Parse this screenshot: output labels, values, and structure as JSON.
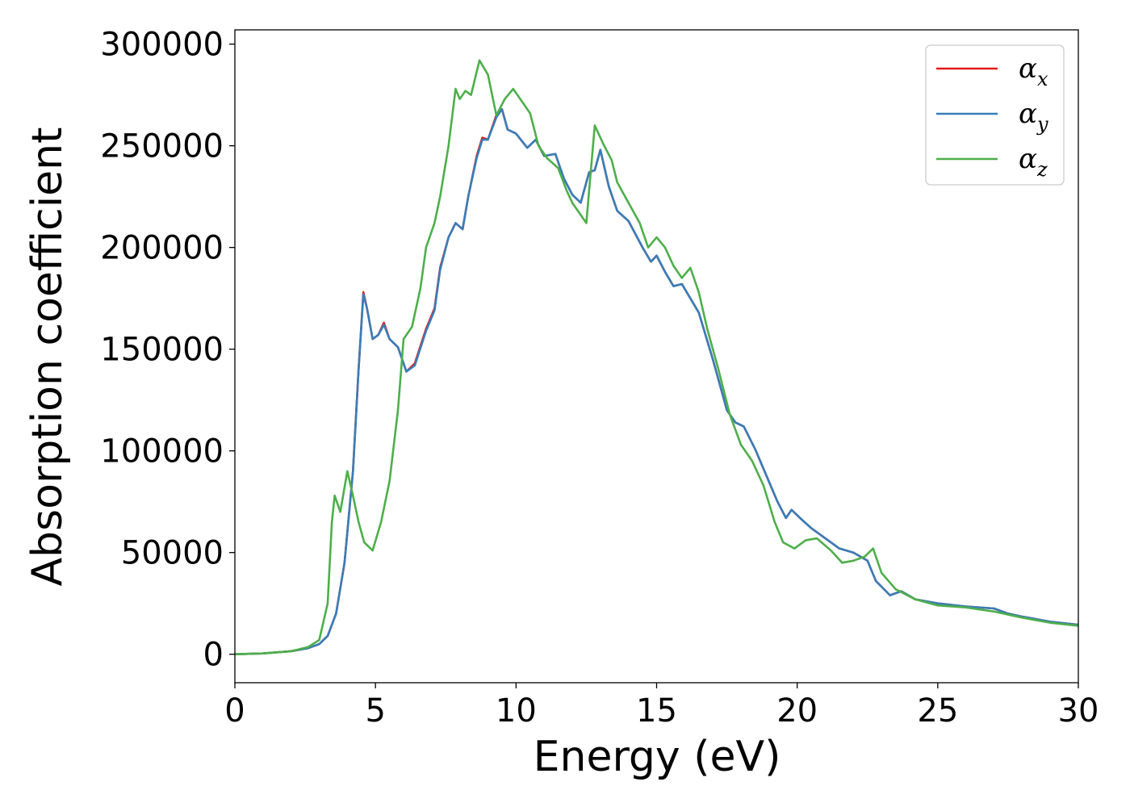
{
  "chart_data": {
    "type": "line",
    "title": "",
    "xlabel": "Energy (eV)",
    "ylabel": "Absorption coefficient",
    "xlim": [
      0,
      30
    ],
    "ylim": [
      -14000,
      307000
    ],
    "xticks": [
      0,
      5,
      10,
      15,
      20,
      25,
      30
    ],
    "xtick_labels": [
      "0",
      "5",
      "10",
      "15",
      "20",
      "25",
      "30"
    ],
    "yticks": [
      0,
      50000,
      100000,
      150000,
      200000,
      250000,
      300000
    ],
    "ytick_labels": [
      "0",
      "50000",
      "100000",
      "150000",
      "200000",
      "250000",
      "300000"
    ],
    "grid": false,
    "legend_position": "top-right",
    "series": [
      {
        "name": "α",
        "subscript": "x",
        "color": "#e41a1c",
        "points": [
          [
            0,
            0
          ],
          [
            1,
            400
          ],
          [
            2,
            1500
          ],
          [
            2.6,
            3000
          ],
          [
            3.0,
            5000
          ],
          [
            3.3,
            9000
          ],
          [
            3.6,
            20000
          ],
          [
            3.9,
            45000
          ],
          [
            4.2,
            90000
          ],
          [
            4.4,
            140000
          ],
          [
            4.57,
            178000
          ],
          [
            4.7,
            170000
          ],
          [
            4.9,
            155000
          ],
          [
            5.1,
            157000
          ],
          [
            5.3,
            163000
          ],
          [
            5.5,
            155000
          ],
          [
            5.8,
            151000
          ],
          [
            6.1,
            139000
          ],
          [
            6.4,
            143000
          ],
          [
            6.8,
            160000
          ],
          [
            7.1,
            170000
          ],
          [
            7.3,
            190000
          ],
          [
            7.6,
            205000
          ],
          [
            7.85,
            212000
          ],
          [
            8.1,
            209000
          ],
          [
            8.3,
            225000
          ],
          [
            8.6,
            245000
          ],
          [
            8.8,
            254000
          ],
          [
            9.0,
            253000
          ],
          [
            9.3,
            265000
          ],
          [
            9.5,
            268000
          ],
          [
            9.7,
            258000
          ],
          [
            10.0,
            256000
          ],
          [
            10.4,
            249000
          ],
          [
            10.7,
            253000
          ],
          [
            11.0,
            245000
          ],
          [
            11.4,
            246000
          ],
          [
            11.7,
            234000
          ],
          [
            12.0,
            226000
          ],
          [
            12.3,
            222000
          ],
          [
            12.6,
            237000
          ],
          [
            12.8,
            238000
          ],
          [
            13.0,
            248000
          ],
          [
            13.3,
            230000
          ],
          [
            13.6,
            218000
          ],
          [
            14.0,
            213000
          ],
          [
            14.5,
            200000
          ],
          [
            14.8,
            193000
          ],
          [
            15.0,
            196000
          ],
          [
            15.3,
            188000
          ],
          [
            15.6,
            181000
          ],
          [
            15.9,
            182000
          ],
          [
            16.2,
            175000
          ],
          [
            16.5,
            168000
          ],
          [
            17.0,
            145000
          ],
          [
            17.5,
            120000
          ],
          [
            17.8,
            114000
          ],
          [
            18.1,
            112000
          ],
          [
            18.5,
            101000
          ],
          [
            18.9,
            88000
          ],
          [
            19.3,
            75000
          ],
          [
            19.6,
            67000
          ],
          [
            19.8,
            71000
          ],
          [
            20.1,
            67000
          ],
          [
            20.5,
            62000
          ],
          [
            21.0,
            57000
          ],
          [
            21.5,
            52000
          ],
          [
            22.0,
            50000
          ],
          [
            22.5,
            46000
          ],
          [
            22.8,
            36000
          ],
          [
            23.3,
            29000
          ],
          [
            23.7,
            31000
          ],
          [
            24.2,
            27000
          ],
          [
            25.0,
            25000
          ],
          [
            26.0,
            23500
          ],
          [
            27.0,
            22500
          ],
          [
            27.5,
            20000
          ],
          [
            28.0,
            18500
          ],
          [
            29.0,
            16000
          ],
          [
            30.0,
            14500
          ]
        ]
      },
      {
        "name": "α",
        "subscript": "y",
        "color": "#377eb8",
        "points": [
          [
            0,
            0
          ],
          [
            1,
            400
          ],
          [
            2,
            1500
          ],
          [
            2.6,
            3000
          ],
          [
            3.0,
            5000
          ],
          [
            3.3,
            9000
          ],
          [
            3.6,
            20000
          ],
          [
            3.9,
            45000
          ],
          [
            4.2,
            90000
          ],
          [
            4.4,
            140000
          ],
          [
            4.57,
            177000
          ],
          [
            4.7,
            170000
          ],
          [
            4.9,
            155000
          ],
          [
            5.1,
            157000
          ],
          [
            5.3,
            162000
          ],
          [
            5.5,
            155000
          ],
          [
            5.8,
            151000
          ],
          [
            6.1,
            139000
          ],
          [
            6.4,
            142000
          ],
          [
            6.8,
            159000
          ],
          [
            7.1,
            169000
          ],
          [
            7.3,
            189000
          ],
          [
            7.6,
            205000
          ],
          [
            7.85,
            212000
          ],
          [
            8.1,
            209000
          ],
          [
            8.3,
            225000
          ],
          [
            8.6,
            244000
          ],
          [
            8.8,
            253000
          ],
          [
            9.0,
            253000
          ],
          [
            9.3,
            264000
          ],
          [
            9.5,
            268000
          ],
          [
            9.7,
            258000
          ],
          [
            10.0,
            256000
          ],
          [
            10.4,
            249000
          ],
          [
            10.7,
            253000
          ],
          [
            11.0,
            245000
          ],
          [
            11.4,
            246000
          ],
          [
            11.7,
            234000
          ],
          [
            12.0,
            226000
          ],
          [
            12.3,
            222000
          ],
          [
            12.6,
            237000
          ],
          [
            12.8,
            238000
          ],
          [
            13.0,
            248000
          ],
          [
            13.3,
            230000
          ],
          [
            13.6,
            218000
          ],
          [
            14.0,
            213000
          ],
          [
            14.5,
            200000
          ],
          [
            14.8,
            193000
          ],
          [
            15.0,
            196000
          ],
          [
            15.3,
            188000
          ],
          [
            15.6,
            181000
          ],
          [
            15.9,
            182000
          ],
          [
            16.2,
            175000
          ],
          [
            16.5,
            168000
          ],
          [
            17.0,
            145000
          ],
          [
            17.5,
            120000
          ],
          [
            17.8,
            114000
          ],
          [
            18.1,
            112000
          ],
          [
            18.5,
            101000
          ],
          [
            18.9,
            88000
          ],
          [
            19.3,
            75000
          ],
          [
            19.6,
            67000
          ],
          [
            19.8,
            71000
          ],
          [
            20.1,
            67000
          ],
          [
            20.5,
            62000
          ],
          [
            21.0,
            57000
          ],
          [
            21.5,
            52000
          ],
          [
            22.0,
            50000
          ],
          [
            22.5,
            46000
          ],
          [
            22.8,
            36000
          ],
          [
            23.3,
            29000
          ],
          [
            23.7,
            31000
          ],
          [
            24.2,
            27000
          ],
          [
            25.0,
            25000
          ],
          [
            26.0,
            23500
          ],
          [
            27.0,
            22500
          ],
          [
            27.5,
            20000
          ],
          [
            28.0,
            18500
          ],
          [
            29.0,
            16000
          ],
          [
            30.0,
            14500
          ]
        ]
      },
      {
        "name": "α",
        "subscript": "z",
        "color": "#4daf4a",
        "points": [
          [
            0,
            0
          ],
          [
            1,
            400
          ],
          [
            2,
            1500
          ],
          [
            2.6,
            3500
          ],
          [
            3.0,
            7000
          ],
          [
            3.3,
            25000
          ],
          [
            3.45,
            65000
          ],
          [
            3.55,
            78000
          ],
          [
            3.75,
            70000
          ],
          [
            4.0,
            90000
          ],
          [
            4.2,
            78000
          ],
          [
            4.4,
            65000
          ],
          [
            4.6,
            55000
          ],
          [
            4.9,
            51000
          ],
          [
            5.2,
            65000
          ],
          [
            5.5,
            85000
          ],
          [
            5.8,
            120000
          ],
          [
            6.0,
            155000
          ],
          [
            6.3,
            161000
          ],
          [
            6.6,
            180000
          ],
          [
            6.8,
            200000
          ],
          [
            7.1,
            212000
          ],
          [
            7.3,
            225000
          ],
          [
            7.6,
            250000
          ],
          [
            7.85,
            278000
          ],
          [
            8.0,
            273000
          ],
          [
            8.2,
            277000
          ],
          [
            8.4,
            275000
          ],
          [
            8.7,
            292000
          ],
          [
            9.0,
            285000
          ],
          [
            9.3,
            265000
          ],
          [
            9.6,
            273000
          ],
          [
            9.9,
            278000
          ],
          [
            10.2,
            272000
          ],
          [
            10.5,
            266000
          ],
          [
            10.8,
            250000
          ],
          [
            11.1,
            244000
          ],
          [
            11.5,
            239000
          ],
          [
            11.8,
            228000
          ],
          [
            12.0,
            222000
          ],
          [
            12.2,
            218000
          ],
          [
            12.5,
            212000
          ],
          [
            12.8,
            260000
          ],
          [
            13.1,
            251000
          ],
          [
            13.4,
            243000
          ],
          [
            13.6,
            232000
          ],
          [
            14.0,
            222000
          ],
          [
            14.4,
            212000
          ],
          [
            14.7,
            200000
          ],
          [
            15.0,
            205000
          ],
          [
            15.3,
            200000
          ],
          [
            15.6,
            191000
          ],
          [
            15.9,
            185000
          ],
          [
            16.2,
            190000
          ],
          [
            16.5,
            178000
          ],
          [
            16.8,
            160000
          ],
          [
            17.2,
            140000
          ],
          [
            17.6,
            118000
          ],
          [
            18.0,
            103000
          ],
          [
            18.4,
            95000
          ],
          [
            18.8,
            83000
          ],
          [
            19.2,
            65000
          ],
          [
            19.5,
            55000
          ],
          [
            19.9,
            52000
          ],
          [
            20.3,
            56000
          ],
          [
            20.7,
            57000
          ],
          [
            21.2,
            51000
          ],
          [
            21.6,
            45000
          ],
          [
            22.0,
            46000
          ],
          [
            22.4,
            48000
          ],
          [
            22.7,
            52000
          ],
          [
            23.0,
            40000
          ],
          [
            23.5,
            32000
          ],
          [
            24.2,
            27000
          ],
          [
            25.0,
            24000
          ],
          [
            26.0,
            23000
          ],
          [
            27.0,
            21000
          ],
          [
            27.5,
            19500
          ],
          [
            28.0,
            18000
          ],
          [
            29.0,
            15500
          ],
          [
            30.0,
            14000
          ]
        ]
      }
    ]
  }
}
